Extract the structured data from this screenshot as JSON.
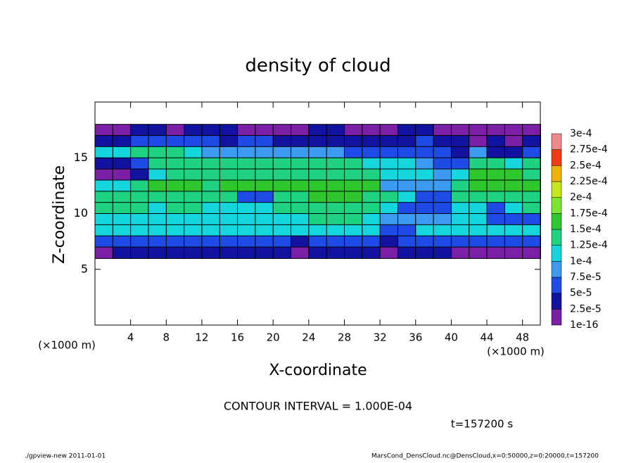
{
  "chart_data": {
    "type": "heatmap",
    "title": "density of cloud",
    "x_label": "X-coordinate",
    "y_label": "Z-coordinate",
    "x_unit": "(×1000 m)",
    "y_unit": "(×1000 m)",
    "contour_note": "CONTOUR INTERVAL = 1.000E-04",
    "time_label": "t=157200 s",
    "footer_left": "./gpview-new  2011-01-01",
    "footer_right": "MarsCond_DensCloud.nc@DensCloud,x=0:50000,z=0:20000,t=157200",
    "xlim": [
      0,
      50
    ],
    "ylim": [
      0,
      20
    ],
    "xticks": [
      4,
      8,
      12,
      16,
      20,
      24,
      28,
      32,
      36,
      40,
      44,
      48
    ],
    "yticks": [
      5,
      10,
      15
    ],
    "x": [
      1,
      3,
      5,
      7,
      9,
      11,
      13,
      15,
      17,
      19,
      21,
      23,
      25,
      27,
      29,
      31,
      33,
      35,
      37,
      39,
      41,
      43,
      45,
      47,
      49
    ],
    "z": [
      17.5,
      16.5,
      15.5,
      14.5,
      13.5,
      12.5,
      11.5,
      10.5,
      9.5,
      8.5,
      7.5,
      6.5
    ],
    "values": [
      [
        1.5e-05,
        1.5e-05,
        3e-05,
        3e-05,
        1.5e-05,
        3e-05,
        3e-05,
        3e-05,
        1.5e-05,
        1.5e-05,
        1.5e-05,
        1.5e-05,
        3e-05,
        3e-05,
        1.5e-05,
        1.5e-05,
        1.5e-05,
        3e-05,
        3e-05,
        1.5e-05,
        1.5e-05,
        1.5e-05,
        1.5e-05,
        1.5e-05,
        1.5e-05
      ],
      [
        4e-05,
        4e-05,
        5e-05,
        5e-05,
        6e-05,
        5e-05,
        5e-05,
        4e-05,
        5e-05,
        5e-05,
        4e-05,
        4e-05,
        3e-05,
        3e-05,
        3e-05,
        3e-05,
        4e-05,
        4e-05,
        5e-05,
        4e-05,
        3e-05,
        1.5e-05,
        3e-05,
        1.5e-05,
        3e-05
      ],
      [
        0.00011,
        0.00012,
        0.00013,
        0.00013,
        0.00013,
        0.00012,
        8e-05,
        9e-05,
        8e-05,
        8e-05,
        8e-05,
        8e-05,
        8e-05,
        8e-05,
        6e-05,
        6e-05,
        6e-05,
        6e-05,
        5e-05,
        5e-05,
        4e-05,
        8e-05,
        4e-05,
        4e-05,
        5e-05
      ],
      [
        4e-05,
        4e-05,
        6e-05,
        0.00013,
        0.00014,
        0.00014,
        0.00014,
        0.00014,
        0.00014,
        0.00013,
        0.00014,
        0.00014,
        0.00013,
        0.00013,
        0.00013,
        0.0001,
        0.0001,
        0.0001,
        9e-05,
        6e-05,
        5e-05,
        0.00013,
        0.00013,
        0.00012,
        0.00013
      ],
      [
        1.5e-05,
        1.5e-05,
        3e-05,
        0.00012,
        0.00014,
        0.00014,
        0.00013,
        0.00014,
        0.00014,
        0.00014,
        0.00014,
        0.00014,
        0.00014,
        0.00014,
        0.00014,
        0.00013,
        0.00012,
        0.00011,
        0.0001,
        9e-05,
        0.00012,
        0.00015,
        0.00015,
        0.00015,
        0.00014
      ],
      [
        0.0001,
        0.00011,
        0.00014,
        0.00015,
        0.00015,
        0.00015,
        0.00014,
        0.00015,
        0.00015,
        0.00015,
        0.00015,
        0.00015,
        0.00016,
        0.00016,
        0.00015,
        0.00015,
        9e-05,
        9e-05,
        9e-05,
        9e-05,
        0.00014,
        0.00016,
        0.00016,
        0.00016,
        0.00015
      ],
      [
        0.00013,
        0.00014,
        0.00014,
        0.00014,
        0.00014,
        0.00013,
        0.00013,
        0.00014,
        6e-05,
        6e-05,
        0.00014,
        0.00014,
        0.00015,
        0.00015,
        0.00015,
        0.00014,
        0.00013,
        0.00012,
        6e-05,
        6e-05,
        0.00013,
        0.00014,
        0.00014,
        0.00013,
        0.00014
      ],
      [
        0.00013,
        0.00013,
        0.00013,
        0.00012,
        0.00013,
        0.00013,
        0.00012,
        0.00012,
        0.00011,
        0.00012,
        0.00013,
        0.00013,
        0.00014,
        0.00014,
        0.00014,
        0.00013,
        0.00012,
        6e-05,
        6e-05,
        7e-05,
        0.00012,
        0.00012,
        6e-05,
        0.00012,
        0.00013
      ],
      [
        0.00012,
        0.00012,
        0.00012,
        0.00011,
        0.00011,
        0.0001,
        0.0001,
        0.0001,
        0.0001,
        0.0001,
        0.00012,
        0.00012,
        0.00013,
        0.00013,
        0.00013,
        0.00011,
        8e-05,
        8e-05,
        8e-05,
        8e-05,
        0.00011,
        0.0001,
        6e-05,
        6e-05,
        6e-05
      ],
      [
        0.0001,
        0.00011,
        0.00011,
        0.00011,
        0.0001,
        0.0001,
        0.0001,
        0.0001,
        0.0001,
        0.0001,
        0.0001,
        0.0001,
        0.00011,
        0.00011,
        0.00011,
        0.0001,
        5e-05,
        5e-05,
        0.0001,
        0.0001,
        0.0001,
        0.0001,
        0.0001,
        0.0001,
        0.0001
      ],
      [
        7e-05,
        7e-05,
        7e-05,
        7e-05,
        7e-05,
        7e-05,
        7e-05,
        7e-05,
        7e-05,
        7e-05,
        6e-05,
        4e-05,
        7e-05,
        7e-05,
        7e-05,
        6e-05,
        4e-05,
        7e-05,
        7e-05,
        7e-05,
        7e-05,
        7e-05,
        7e-05,
        7e-05,
        7e-05
      ],
      [
        2e-05,
        3e-05,
        3e-05,
        3e-05,
        3e-05,
        3e-05,
        3e-05,
        3e-05,
        3e-05,
        3e-05,
        3e-05,
        1.5e-05,
        3e-05,
        3e-05,
        3e-05,
        3e-05,
        1.5e-05,
        3e-05,
        3e-05,
        3e-05,
        1.5e-05,
        1.5e-05,
        1.5e-05,
        1.5e-05,
        1.5e-05
      ]
    ],
    "color_levels": [
      {
        "value": 1e-16,
        "label": "1e-16"
      },
      {
        "value": 2.5e-05,
        "label": "2.5e-5"
      },
      {
        "value": 5e-05,
        "label": "5e-5"
      },
      {
        "value": 7.5e-05,
        "label": "7.5e-5"
      },
      {
        "value": 0.0001,
        "label": "1e-4"
      },
      {
        "value": 0.000125,
        "label": "1.25e-4"
      },
      {
        "value": 0.00015,
        "label": "1.5e-4"
      },
      {
        "value": 0.000175,
        "label": "1.75e-4"
      },
      {
        "value": 0.0002,
        "label": "2e-4"
      },
      {
        "value": 0.000225,
        "label": "2.25e-4"
      },
      {
        "value": 0.00025,
        "label": "2.5e-4"
      },
      {
        "value": 0.000275,
        "label": "2.75e-4"
      },
      {
        "value": 0.0003,
        "label": "3e-4"
      }
    ],
    "colors": [
      "#7a1fa6",
      "#1212a0",
      "#1e4be6",
      "#3c9af0",
      "#14d6dc",
      "#1ed282",
      "#2ec82e",
      "#7ae632",
      "#c8e61e",
      "#f0b400",
      "#f03c14",
      "#f08a8a"
    ]
  }
}
